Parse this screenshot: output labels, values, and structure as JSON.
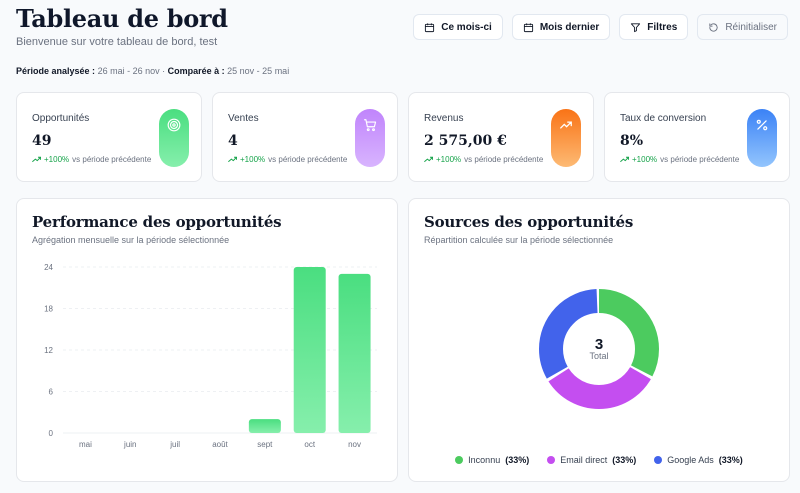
{
  "header": {
    "title": "Tableau de bord",
    "subtitle": "Bienvenue sur votre tableau de bord, test"
  },
  "toolbar": {
    "this_month": "Ce mois-ci",
    "last_month": "Mois dernier",
    "filters": "Filtres",
    "reset": "Réinitialiser"
  },
  "period": {
    "analyzed_label": "Période analysée :",
    "analyzed_value": "26 mai - 26 nov",
    "sep": " · ",
    "compared_label": "Comparée à :",
    "compared_value": "25 nov - 25 mai"
  },
  "kpis": [
    {
      "label": "Opportunités",
      "value": "49",
      "delta": "+100%",
      "delta_text": "vs période précédente",
      "icon": "target-icon",
      "color": "#4ade80"
    },
    {
      "label": "Ventes",
      "value": "4",
      "delta": "+100%",
      "delta_text": "vs période précédente",
      "icon": "cart-icon",
      "color": "#c084fc"
    },
    {
      "label": "Revenus",
      "value": "2 575,00 €",
      "delta": "+100%",
      "delta_text": "vs période précédente",
      "icon": "trending-up-icon",
      "color": "#fb923c"
    },
    {
      "label": "Taux de conversion",
      "value": "8%",
      "delta": "+100%",
      "delta_text": "vs période précédente",
      "icon": "percent-icon",
      "color": "#60a5fa"
    }
  ],
  "performance": {
    "title": "Performance des opportunités",
    "subtitle": "Agrégation mensuelle sur la période sélectionnée"
  },
  "sources": {
    "title": "Sources des opportunités",
    "subtitle": "Répartition calculée sur la période sélectionnée",
    "total_value": "3",
    "total_label": "Total",
    "legend": [
      {
        "name": "Inconnu",
        "pct": "(33%)",
        "color": "#4ccb5f"
      },
      {
        "name": "Email direct",
        "pct": "(33%)",
        "color": "#c44ef0"
      },
      {
        "name": "Google Ads",
        "pct": "(33%)",
        "color": "#4263eb"
      }
    ]
  },
  "chart_data": [
    {
      "type": "bar",
      "title": "Performance des opportunités",
      "categories": [
        "mai",
        "juin",
        "juil",
        "août",
        "sept",
        "oct",
        "nov"
      ],
      "values": [
        0,
        0,
        0,
        0,
        2,
        24,
        23
      ],
      "yticks": [
        0,
        6,
        12,
        18,
        24
      ],
      "ylim": [
        0,
        24
      ],
      "grid": true,
      "color": "#4ade80"
    },
    {
      "type": "pie",
      "title": "Sources des opportunités",
      "categories": [
        "Inconnu",
        "Email direct",
        "Google Ads"
      ],
      "values": [
        1,
        1,
        1
      ],
      "colors": [
        "#4ccb5f",
        "#c44ef0",
        "#4263eb"
      ]
    }
  ]
}
